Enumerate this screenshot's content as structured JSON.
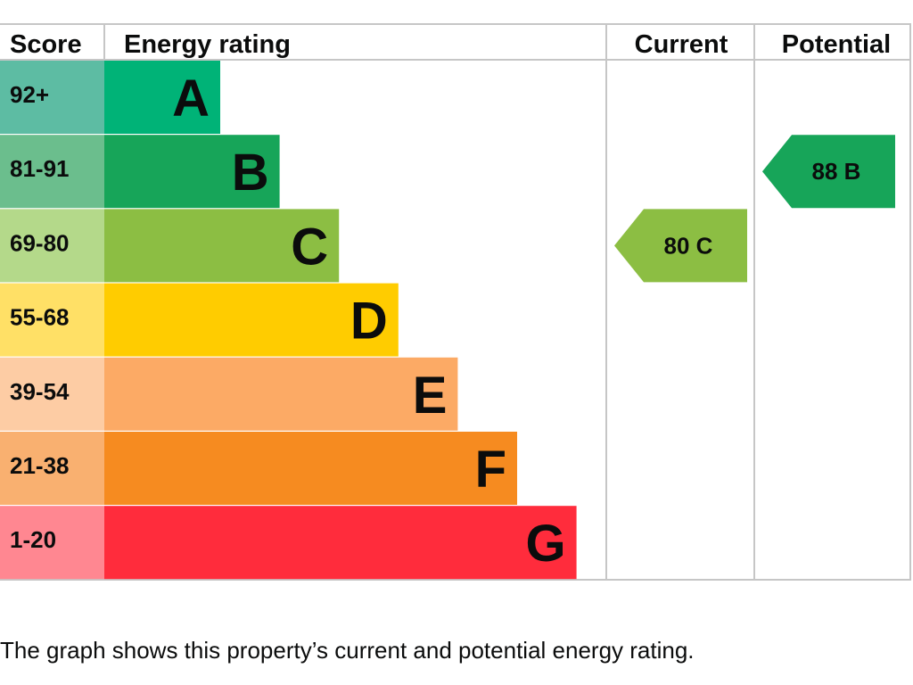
{
  "chart_data": {
    "type": "bar",
    "headers": {
      "score": "Score",
      "rating": "Energy rating",
      "current": "Current",
      "potential": "Potential"
    },
    "bands": [
      {
        "letter": "A",
        "score": "92+",
        "color": "#00b377",
        "light": "#5dbca3"
      },
      {
        "letter": "B",
        "score": "81-91",
        "color": "#17a559",
        "light": "#6bbe8d"
      },
      {
        "letter": "C",
        "score": "69-80",
        "color": "#8cbe43",
        "light": "#b4d98a"
      },
      {
        "letter": "D",
        "score": "55-68",
        "color": "#ffcc00",
        "light": "#ffe066"
      },
      {
        "letter": "E",
        "score": "39-54",
        "color": "#fcaa65",
        "light": "#fdcca4"
      },
      {
        "letter": "F",
        "score": "21-38",
        "color": "#f68b20",
        "light": "#f9b070"
      },
      {
        "letter": "G",
        "score": "1-20",
        "color": "#ff2c3c",
        "light": "#ff8791"
      }
    ],
    "current": {
      "value": 80,
      "band": "C",
      "label": "80  C",
      "color": "#8cbe43"
    },
    "potential": {
      "value": 88,
      "band": "B",
      "label": "88  B",
      "color": "#17a559"
    }
  },
  "caption": "The graph shows this property’s current and potential energy rating."
}
